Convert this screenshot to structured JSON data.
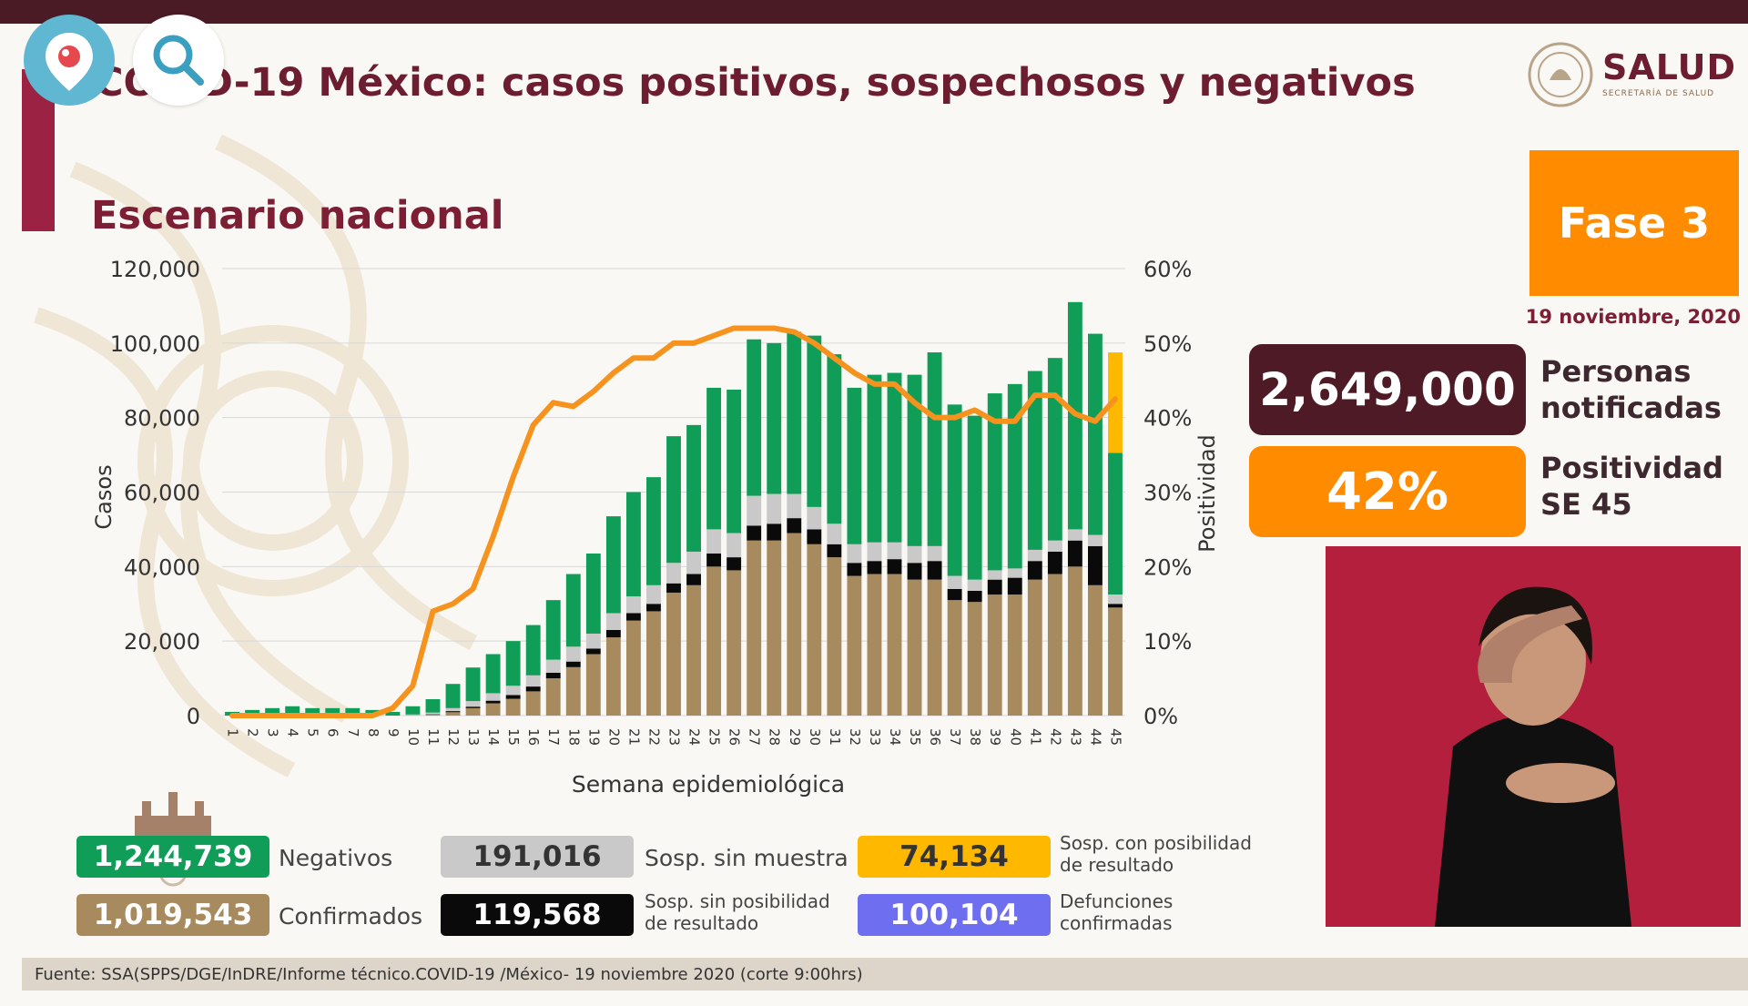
{
  "title": "COVID-19 México: casos positivos, sospechosos y negativos",
  "subtitle": "Escenario nacional",
  "logo": {
    "name": "SALUD",
    "sub": "SECRETARÍA DE SALUD"
  },
  "phase": "Fase 3",
  "date": "19 noviembre, 2020",
  "stats": {
    "notified_value": "2,649,000",
    "notified_label_1": "Personas",
    "notified_label_2": "notificadas",
    "positivity_value": "42%",
    "positivity_label_1": "Positividad",
    "positivity_label_2": "SE 45"
  },
  "legend": [
    {
      "value": "1,244,739",
      "label_1": "Negativos",
      "label_2": "",
      "color": "#109d58",
      "text_color": "#ffffff"
    },
    {
      "value": "191,016",
      "label_1": "Sosp. sin muestra",
      "label_2": "",
      "color": "#c9c9c9",
      "text_color": "#333333"
    },
    {
      "value": "74,134",
      "label_1": "Sosp. con posibilidad",
      "label_2": "de resultado",
      "color": "#ffb800",
      "text_color": "#333333"
    },
    {
      "value": "1,019,543",
      "label_1": "Confirmados",
      "label_2": "",
      "color": "#a88a5f",
      "text_color": "#ffffff"
    },
    {
      "value": "119,568",
      "label_1": "Sosp. sin posibilidad",
      "label_2": "de resultado",
      "color": "#0a0a0a",
      "text_color": "#ffffff"
    },
    {
      "value": "100,104",
      "label_1": "Defunciones",
      "label_2": "confirmadas",
      "color": "#6e6ef0",
      "text_color": "#ffffff"
    }
  ],
  "footer": "Fuente: SSA(SPPS/DGE/InDRE/Informe técnico.COVID-19 /México- 19 noviembre 2020 (corte 9:00hrs)",
  "colors": {
    "confirmed": "#a88a5f",
    "sosp_sin_posibilidad": "#0a0a0a",
    "sosp_sin_muestra": "#c9c9c9",
    "negatives": "#109d58",
    "sosp_con_posibilidad": "#ffb800",
    "positivity_line": "#f5931e"
  },
  "chart_data": {
    "type": "bar",
    "stacked": true,
    "xlabel": "Semana epidemiológica",
    "ylabel": "Casos",
    "y2label": "Positividad",
    "ylim": [
      0,
      120000
    ],
    "y2lim": [
      0,
      60
    ],
    "yticks": [
      "0",
      "20,000",
      "40,000",
      "60,000",
      "80,000",
      "100,000",
      "120,000"
    ],
    "y2ticks": [
      "0%",
      "10%",
      "20%",
      "30%",
      "40%",
      "50%",
      "60%"
    ],
    "categories": [
      "1",
      "2",
      "3",
      "4",
      "5",
      "6",
      "7",
      "8",
      "9",
      "10",
      "11",
      "12",
      "13",
      "14",
      "15",
      "16",
      "17",
      "18",
      "19",
      "20",
      "21",
      "22",
      "23",
      "24",
      "25",
      "26",
      "27",
      "28",
      "29",
      "30",
      "31",
      "32",
      "33",
      "34",
      "35",
      "36",
      "37",
      "38",
      "39",
      "40",
      "41",
      "42",
      "43",
      "44",
      "45"
    ],
    "series": [
      {
        "name": "Confirmados",
        "values": [
          0,
          0,
          0,
          0,
          0,
          0,
          0,
          0,
          0,
          100,
          300,
          900,
          2000,
          3300,
          4500,
          6500,
          10000,
          13000,
          16500,
          21000,
          25500,
          28000,
          33000,
          35000,
          40000,
          39000,
          47000,
          47000,
          49000,
          46000,
          42500,
          37500,
          38000,
          38000,
          36500,
          36500,
          31000,
          30500,
          32500,
          32500,
          36500,
          38000,
          40000,
          35000,
          29000
        ]
      },
      {
        "name": "Sosp. sin posibilidad",
        "values": [
          0,
          0,
          0,
          0,
          0,
          0,
          0,
          0,
          0,
          0,
          100,
          300,
          400,
          700,
          1000,
          1300,
          1500,
          1500,
          1500,
          2000,
          2000,
          2000,
          2500,
          3000,
          3500,
          3500,
          4000,
          4500,
          4000,
          4000,
          3500,
          3500,
          3500,
          4000,
          4500,
          5000,
          3000,
          3000,
          4000,
          4500,
          5000,
          6000,
          7000,
          10500,
          1000
        ]
      },
      {
        "name": "Sosp. sin muestra",
        "values": [
          0,
          0,
          0,
          0,
          0,
          0,
          0,
          0,
          0,
          200,
          400,
          800,
          1500,
          2000,
          2500,
          3000,
          3500,
          4000,
          4000,
          4500,
          4500,
          5000,
          5500,
          6000,
          6500,
          6500,
          8000,
          8000,
          6500,
          6000,
          5500,
          5000,
          5000,
          4500,
          4500,
          4000,
          3500,
          3000,
          2500,
          2500,
          3000,
          3000,
          3000,
          3000,
          2500
        ]
      },
      {
        "name": "Negativos",
        "values": [
          1000,
          1500,
          2000,
          2500,
          2000,
          2000,
          2000,
          1500,
          1000,
          2200,
          3600,
          6500,
          9000,
          10500,
          12000,
          13500,
          16000,
          19500,
          21500,
          26000,
          28000,
          29000,
          34000,
          34000,
          38000,
          38500,
          42000,
          40500,
          43500,
          46000,
          45500,
          42000,
          45000,
          45500,
          46000,
          52000,
          46000,
          44000,
          47500,
          49500,
          48000,
          49000,
          61000,
          54000,
          38000
        ]
      },
      {
        "name": "Sosp. con posibilidad",
        "values": [
          0,
          0,
          0,
          0,
          0,
          0,
          0,
          0,
          0,
          0,
          0,
          0,
          0,
          0,
          0,
          0,
          0,
          0,
          0,
          0,
          0,
          0,
          0,
          0,
          0,
          0,
          0,
          0,
          0,
          0,
          0,
          0,
          0,
          0,
          0,
          0,
          0,
          0,
          0,
          0,
          0,
          0,
          0,
          0,
          27000
        ]
      },
      {
        "name": "Positividad (%)",
        "axis": "y2",
        "type": "line",
        "values": [
          0,
          0,
          0,
          0,
          0,
          0,
          0,
          0,
          1,
          4,
          14,
          15,
          17,
          24,
          32,
          39,
          42,
          41.5,
          43.5,
          46,
          48,
          48,
          50,
          50,
          51,
          52,
          52,
          52,
          51.5,
          50,
          48,
          46,
          44.5,
          44.5,
          42,
          40,
          40,
          41,
          39.5,
          39.5,
          43,
          43,
          40.5,
          39.5,
          42.5
        ]
      }
    ]
  }
}
